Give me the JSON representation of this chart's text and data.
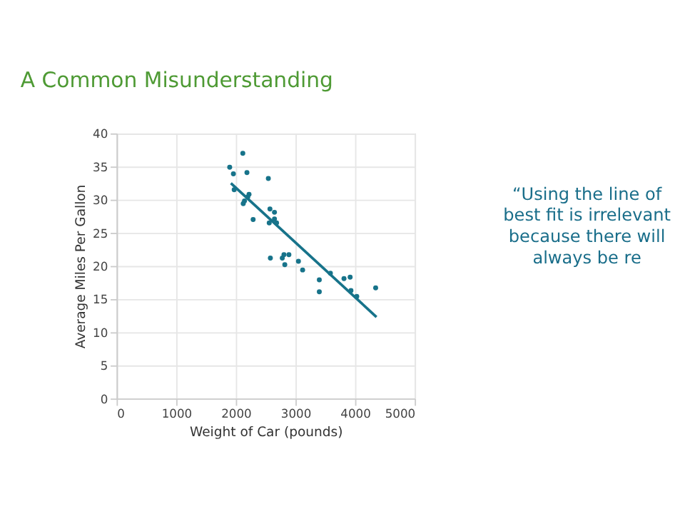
{
  "chart_data": {
    "type": "scatter",
    "title": "A Common Misunderstanding",
    "xlabel": "Weight of Car (pounds)",
    "ylabel": "Average Miles Per Gallon",
    "x": [
      1897,
      1959,
      1972,
      2117,
      2186,
      2124,
      2145,
      2200,
      2221,
      2290,
      2545,
      2572,
      2560,
      2579,
      2648,
      2648,
      2683,
      2779,
      2807,
      2821,
      2890,
      3050,
      3120,
      3400,
      3400,
      3586,
      3814,
      3917,
      3931,
      4028,
      4345
    ],
    "series": [
      {
        "color": "#17738a",
        "marker": "circle",
        "values": [
          34.9,
          33.9,
          31.5,
          37.0,
          34.1,
          29.4,
          29.8,
          30.4,
          30.8,
          27.0,
          33.2,
          28.6,
          26.5,
          21.2,
          28.1,
          27.1,
          26.5,
          21.2,
          21.7,
          20.2,
          21.7,
          20.7,
          19.4,
          17.9,
          16.1,
          18.9,
          18.1,
          18.3,
          16.3,
          15.4,
          16.7
        ]
      },
      {
        "type": "line",
        "color": "#17738a",
        "x": [
          1917,
          4359
        ],
        "values": [
          32.5,
          12.3
        ]
      }
    ],
    "xlim": [
      0,
      5000
    ],
    "xticks": [
      0,
      1000,
      2000,
      3000,
      4000,
      5000
    ],
    "ylim": [
      0,
      40
    ],
    "yticks": [
      0,
      5,
      10,
      15,
      20,
      25,
      30,
      35,
      40
    ],
    "grid": true,
    "annotations": [
      "“Using the line of best fit is irrelevant because there will always be re"
    ]
  }
}
